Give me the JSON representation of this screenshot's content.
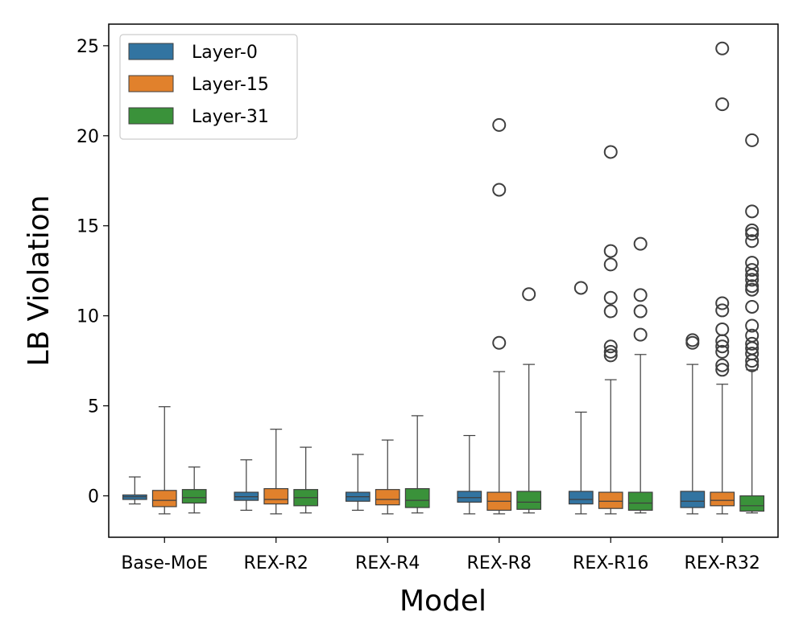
{
  "chart_data": {
    "type": "box",
    "title": "",
    "xlabel": "Model",
    "ylabel": "LB Violation",
    "ylim": [
      -2.3,
      26.2
    ],
    "yticks": [
      0,
      5,
      10,
      15,
      20,
      25
    ],
    "grid": false,
    "legend_position": "top-left",
    "categories": [
      "Base-MoE",
      "REX-R2",
      "REX-R4",
      "REX-R8",
      "REX-R16",
      "REX-R32"
    ],
    "series": [
      {
        "name": "Layer-0",
        "color": "#3274a1",
        "boxes": [
          {
            "whisker_low": -0.45,
            "q1": -0.2,
            "median": -0.05,
            "q3": 0.05,
            "whisker_high": 1.05,
            "outliers": []
          },
          {
            "whisker_low": -0.8,
            "q1": -0.25,
            "median": -0.05,
            "q3": 0.2,
            "whisker_high": 2.0,
            "outliers": []
          },
          {
            "whisker_low": -0.8,
            "q1": -0.3,
            "median": -0.05,
            "q3": 0.2,
            "whisker_high": 2.3,
            "outliers": []
          },
          {
            "whisker_low": -1.0,
            "q1": -0.35,
            "median": -0.1,
            "q3": 0.25,
            "whisker_high": 3.35,
            "outliers": []
          },
          {
            "whisker_low": -1.0,
            "q1": -0.45,
            "median": -0.2,
            "q3": 0.25,
            "whisker_high": 4.65,
            "outliers": [
              11.55
            ]
          },
          {
            "whisker_low": -1.0,
            "q1": -0.65,
            "median": -0.3,
            "q3": 0.25,
            "whisker_high": 7.3,
            "outliers": [
              8.5,
              8.65
            ]
          }
        ]
      },
      {
        "name": "Layer-15",
        "color": "#e1812c",
        "boxes": [
          {
            "whisker_low": -1.0,
            "q1": -0.6,
            "median": -0.25,
            "q3": 0.3,
            "whisker_high": 4.95,
            "outliers": []
          },
          {
            "whisker_low": -1.0,
            "q1": -0.45,
            "median": -0.2,
            "q3": 0.4,
            "whisker_high": 3.7,
            "outliers": []
          },
          {
            "whisker_low": -1.0,
            "q1": -0.5,
            "median": -0.2,
            "q3": 0.35,
            "whisker_high": 3.1,
            "outliers": []
          },
          {
            "whisker_low": -1.0,
            "q1": -0.8,
            "median": -0.3,
            "q3": 0.2,
            "whisker_high": 6.9,
            "outliers": [
              8.5,
              17.0,
              20.6
            ]
          },
          {
            "whisker_low": -1.0,
            "q1": -0.7,
            "median": -0.3,
            "q3": 0.2,
            "whisker_high": 6.45,
            "outliers": [
              7.8,
              8.0,
              8.3,
              10.25,
              11.0,
              12.85,
              13.6,
              19.1
            ]
          },
          {
            "whisker_low": -1.0,
            "q1": -0.55,
            "median": -0.25,
            "q3": 0.2,
            "whisker_high": 6.2,
            "outliers": [
              7.0,
              7.25,
              8.0,
              8.3,
              8.6,
              9.25,
              10.3,
              10.7,
              21.75,
              24.85
            ]
          }
        ]
      },
      {
        "name": "Layer-31",
        "color": "#3a923a",
        "boxes": [
          {
            "whisker_low": -0.95,
            "q1": -0.4,
            "median": -0.1,
            "q3": 0.35,
            "whisker_high": 1.6,
            "outliers": []
          },
          {
            "whisker_low": -0.95,
            "q1": -0.55,
            "median": -0.1,
            "q3": 0.35,
            "whisker_high": 2.7,
            "outliers": []
          },
          {
            "whisker_low": -0.95,
            "q1": -0.65,
            "median": -0.25,
            "q3": 0.4,
            "whisker_high": 4.45,
            "outliers": []
          },
          {
            "whisker_low": -0.95,
            "q1": -0.75,
            "median": -0.35,
            "q3": 0.25,
            "whisker_high": 7.3,
            "outliers": [
              11.2
            ]
          },
          {
            "whisker_low": -0.95,
            "q1": -0.8,
            "median": -0.4,
            "q3": 0.2,
            "whisker_high": 7.85,
            "outliers": [
              8.95,
              10.25,
              11.15,
              14.0
            ]
          },
          {
            "whisker_low": -0.95,
            "q1": -0.85,
            "median": -0.55,
            "q3": 0.0,
            "whisker_high": 7.0,
            "outliers": [
              7.25,
              7.5,
              7.9,
              8.2,
              8.45,
              8.9,
              9.45,
              10.5,
              11.45,
              11.65,
              12.0,
              12.25,
              12.55,
              12.95,
              14.15,
              14.55,
              14.75,
              15.8,
              19.75
            ]
          }
        ]
      }
    ]
  }
}
